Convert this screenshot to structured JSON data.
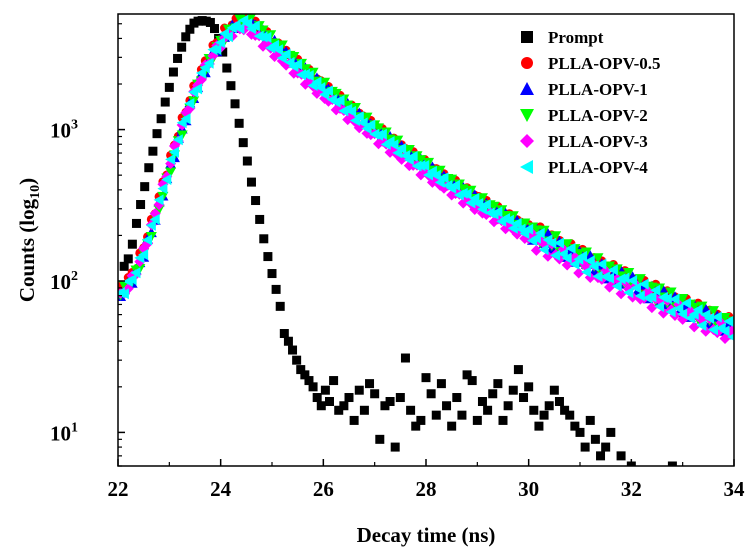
{
  "chart_data": {
    "type": "scatter",
    "title": "",
    "xlabel": "Decay time (ns)",
    "ylabel_main": "Counts (log",
    "ylabel_sub": "10",
    "ylabel_close": ")",
    "xlim": [
      22,
      34
    ],
    "ylim": [
      6,
      5800
    ],
    "yscale": "log",
    "xticks": [
      22,
      24,
      26,
      28,
      30,
      32,
      34
    ],
    "xtick_labels": [
      "22",
      "24",
      "26",
      "28",
      "30",
      "32",
      "34"
    ],
    "yticks": [
      {
        "value": 10,
        "base": "10",
        "exp": "1"
      },
      {
        "value": 100,
        "base": "10",
        "exp": "2"
      },
      {
        "value": 1000,
        "base": "10",
        "exp": "3"
      }
    ],
    "grid": false,
    "legend_position": "top-right",
    "series": [
      {
        "name": "Prompt",
        "marker": "square",
        "color": "#000000",
        "x": [
          22.04,
          22.12,
          22.2,
          22.28,
          22.36,
          22.44,
          22.52,
          22.6,
          22.68,
          22.76,
          22.84,
          22.92,
          23.0,
          23.08,
          23.16,
          23.24,
          23.32,
          23.4,
          23.48,
          23.56,
          23.64,
          23.72,
          23.8,
          23.88,
          23.96,
          24.04,
          24.12,
          24.2,
          24.28,
          24.36,
          24.44,
          24.52,
          24.6,
          24.68,
          24.76,
          24.84,
          24.92,
          25.0,
          25.08,
          25.16,
          25.24,
          25.32,
          25.4,
          25.48,
          25.56,
          25.64,
          25.72,
          25.8,
          25.88,
          25.96,
          26.04,
          26.12,
          26.2,
          26.3,
          26.4,
          26.5,
          26.6,
          26.7,
          26.8,
          26.9,
          27.0,
          27.1,
          27.2,
          27.3,
          27.4,
          27.5,
          27.6,
          27.7,
          27.8,
          27.9,
          28.0,
          28.1,
          28.2,
          28.3,
          28.4,
          28.5,
          28.6,
          28.7,
          28.8,
          28.9,
          29.0,
          29.1,
          29.2,
          29.3,
          29.4,
          29.5,
          29.6,
          29.7,
          29.8,
          29.9,
          30.0,
          30.1,
          30.2,
          30.3,
          30.4,
          30.5,
          30.6,
          30.7,
          30.8,
          30.9,
          31.0,
          31.1,
          31.2,
          31.3,
          31.4,
          31.5,
          31.6,
          31.8,
          32.0,
          32.4,
          32.8
        ],
        "y": [
          90,
          125,
          140,
          175,
          240,
          320,
          420,
          560,
          720,
          940,
          1180,
          1520,
          1900,
          2400,
          2950,
          3500,
          4100,
          4600,
          5050,
          5200,
          5250,
          5200,
          5100,
          4650,
          4000,
          3250,
          2550,
          1950,
          1480,
          1100,
          820,
          620,
          450,
          340,
          255,
          190,
          145,
          112,
          88,
          68,
          45,
          40,
          35,
          30,
          26,
          24,
          22,
          20,
          17,
          15,
          19,
          16,
          22,
          14,
          15,
          17,
          12,
          19,
          14,
          21,
          18,
          9,
          15,
          16,
          8,
          17,
          31,
          14,
          11,
          12,
          23,
          18,
          13,
          21,
          15,
          11,
          17,
          13,
          24,
          22,
          12,
          16,
          14,
          18,
          21,
          12,
          15,
          19,
          26,
          17,
          20,
          14,
          11,
          13,
          15,
          19,
          16,
          14,
          13,
          11,
          10,
          8,
          12,
          9,
          7,
          8,
          10,
          7,
          6,
          5,
          6
        ]
      },
      {
        "name": "PLLA-OPV-0.5",
        "marker": "circle",
        "color": "#ff0000",
        "shift": 0.0,
        "scale": 1.08
      },
      {
        "name": "PLLA-OPV-1",
        "marker": "triangle-up",
        "color": "#0000ff",
        "shift": 0.03,
        "scale": 1.03
      },
      {
        "name": "PLLA-OPV-2",
        "marker": "triangle-down",
        "color": "#00ff00",
        "shift": 0.05,
        "scale": 1.05
      },
      {
        "name": "PLLA-OPV-3",
        "marker": "diamond",
        "color": "#ff00ff",
        "shift": -0.03,
        "scale": 0.94
      },
      {
        "name": "PLLA-OPV-4",
        "marker": "triangle-left",
        "color": "#00ffff",
        "shift": 0.0,
        "scale": 1.0
      }
    ]
  }
}
